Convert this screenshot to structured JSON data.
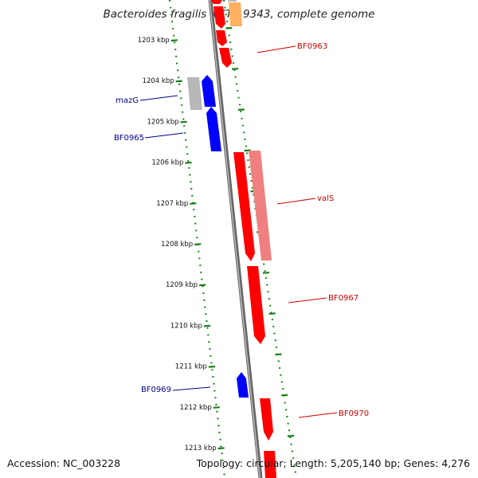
{
  "title": "Bacteroides fragilis NCTC 9343, complete genome",
  "footer": {
    "accession": "Accession: NC_003228",
    "summary": "Topology: circular; Length: 5,205,140 bp; Genes: 4,276"
  },
  "colors": {
    "forward_cds": "#ff0000",
    "forward_light": "#f08080",
    "reverse_cds": "#0000ff",
    "other_feature": "#b8b8b8",
    "orange_feature": "#ffb060",
    "backbone": "#888888",
    "tick": "#1a7f1a",
    "forward_label": "#cc0000",
    "reverse_label": "#00008b"
  },
  "tick_labels": [
    "1203 kbp",
    "1204 kbp",
    "1205 kbp",
    "1206 kbp",
    "1207 kbp",
    "1208 kbp",
    "1209 kbp",
    "1210 kbp",
    "1211 kbp",
    "1212 kbp",
    "1213 kbp"
  ],
  "gene_labels": [
    {
      "name": "BF0963",
      "strand": "forward"
    },
    {
      "name": "mazG",
      "strand": "reverse"
    },
    {
      "name": "BF0965",
      "strand": "reverse"
    },
    {
      "name": "valS",
      "strand": "forward"
    },
    {
      "name": "BF0967",
      "strand": "forward"
    },
    {
      "name": "BF0969",
      "strand": "reverse"
    },
    {
      "name": "BF0970",
      "strand": "forward"
    }
  ]
}
